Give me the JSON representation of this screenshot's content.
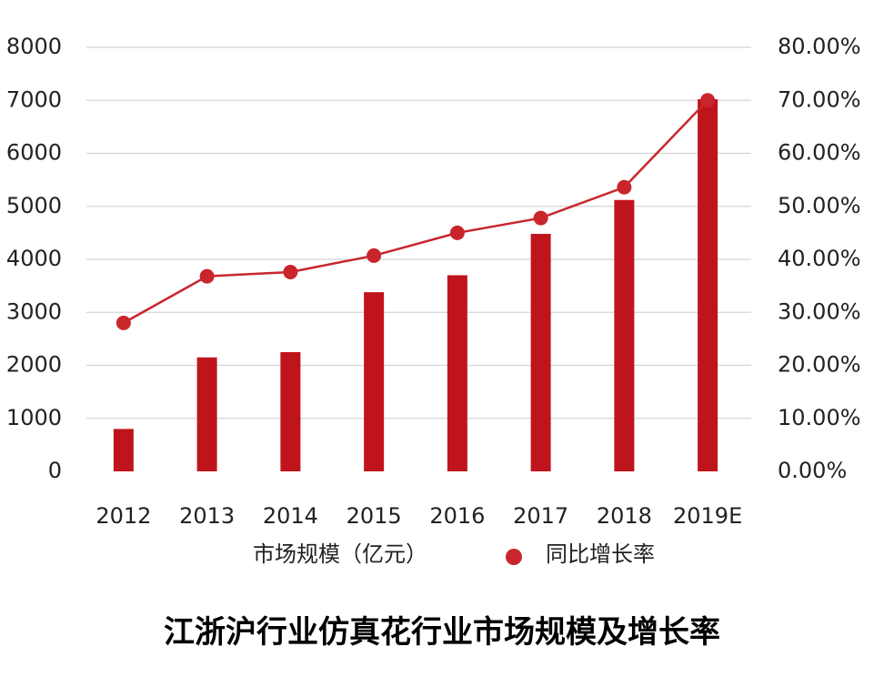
{
  "chart_data": {
    "type": "bar",
    "title": "江浙沪行业仿真花行业市场规模及增长率",
    "categories": [
      "2012",
      "2013",
      "2014",
      "2015",
      "2016",
      "2017",
      "2018",
      "2019E"
    ],
    "series": [
      {
        "name": "市场规模（亿元）",
        "type": "bar",
        "color": "#c0141c",
        "values": [
          800,
          2150,
          2250,
          3380,
          3700,
          4480,
          5120,
          7020
        ]
      },
      {
        "name": "同比增长率",
        "type": "line",
        "axis": "y2",
        "color": "#c8262c",
        "values": [
          28,
          36.8,
          37.6,
          40.7,
          45,
          47.8,
          53.6,
          70
        ]
      }
    ],
    "ylim": [
      0,
      8000
    ],
    "yticks": [
      0,
      1000,
      2000,
      3000,
      4000,
      5000,
      6000,
      7000,
      8000
    ],
    "y2lim": [
      0,
      80
    ],
    "y2ticks": [
      {
        "value": 0,
        "label": "0.00%"
      },
      {
        "value": 10,
        "label": "10.00%"
      },
      {
        "value": 20,
        "label": "20.00%"
      },
      {
        "value": 30,
        "label": "30.00%"
      },
      {
        "value": 40,
        "label": "40.00%"
      },
      {
        "value": 50,
        "label": "50.00%"
      },
      {
        "value": 60,
        "label": "60.00%"
      },
      {
        "value": 70,
        "label": "70.00%"
      },
      {
        "value": 80,
        "label": "80.00%"
      }
    ],
    "grid": true
  }
}
